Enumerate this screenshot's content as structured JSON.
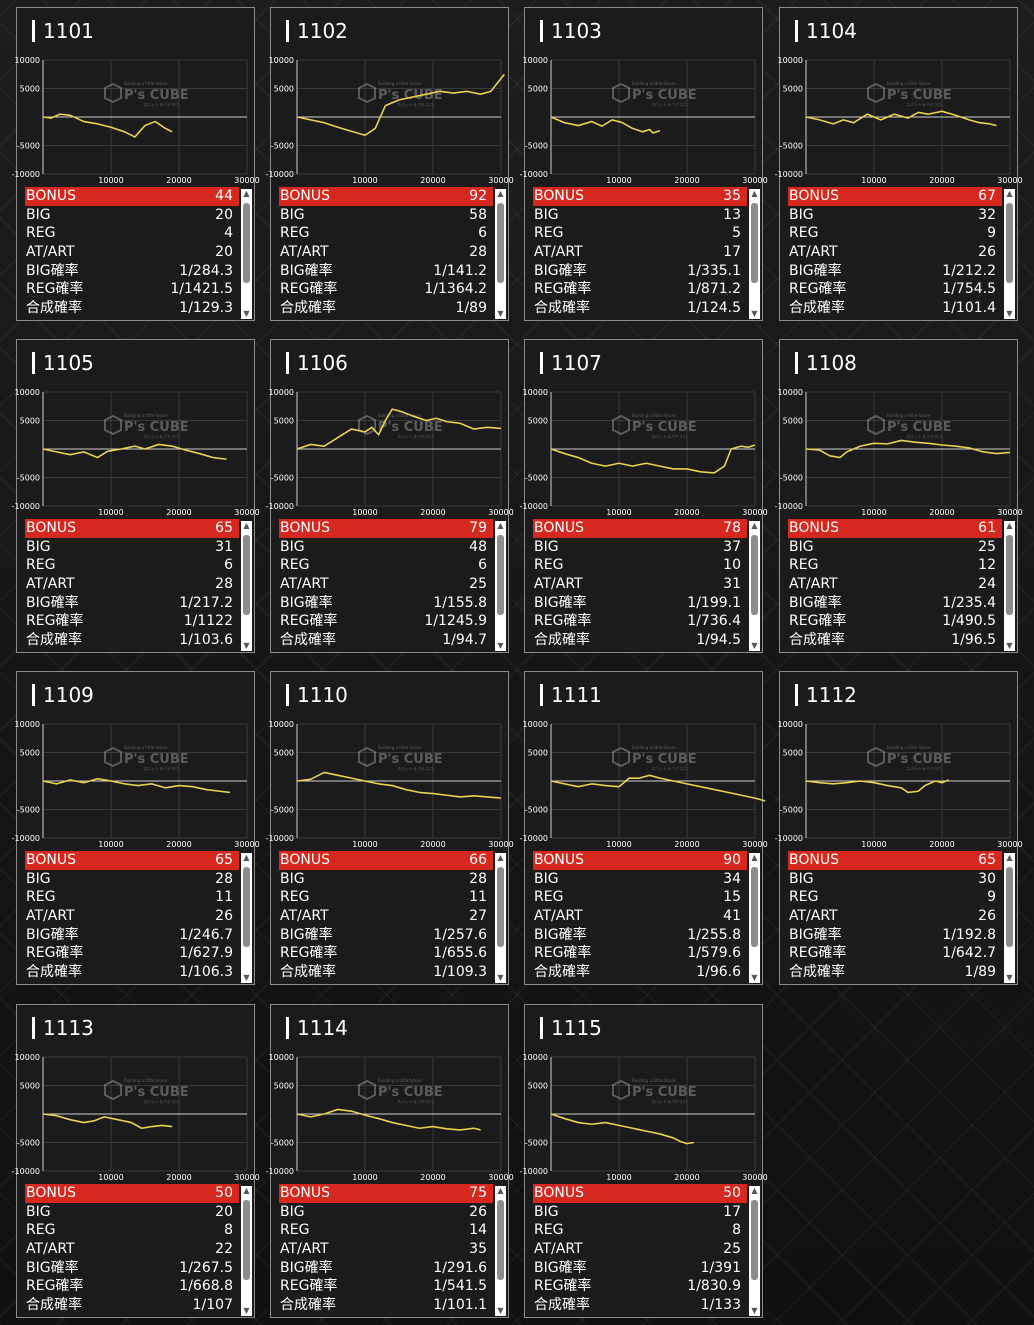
{
  "labels": {
    "bonus": "BONUS",
    "big": "BIG",
    "reg": "REG",
    "atart": "AT/ART",
    "big_rate": "BIG確率",
    "reg_rate": "REG確率",
    "total_rate": "合成確率"
  },
  "chart_axes": {
    "y_ticks": [
      "10000",
      "5000",
      "-5000",
      "-10000"
    ],
    "x_ticks": [
      "10000",
      "20000",
      "30000"
    ],
    "ylim": [
      -10000,
      10000
    ],
    "xlim": [
      0,
      30000
    ]
  },
  "watermark": {
    "text": "P's CUBE",
    "sub": "Building a little future",
    "sub2": "スロット＆パチスロ"
  },
  "colors": {
    "line": "#e8d24b",
    "bonus_bg": "#d6281f"
  },
  "machines": [
    {
      "id": "1101",
      "bonus": "44",
      "big": "20",
      "reg": "4",
      "atart": "20",
      "big_rate": "1/284.3",
      "reg_rate": "1/1421.5",
      "total_rate": "1/129.3",
      "series": [
        [
          0,
          0
        ],
        [
          1200,
          -200
        ],
        [
          2500,
          500
        ],
        [
          4000,
          300
        ],
        [
          6000,
          -800
        ],
        [
          8000,
          -1200
        ],
        [
          10000,
          -1800
        ],
        [
          12000,
          -2600
        ],
        [
          13500,
          -3500
        ],
        [
          15000,
          -1500
        ],
        [
          16500,
          -800
        ],
        [
          18000,
          -2000
        ],
        [
          19000,
          -2600
        ]
      ]
    },
    {
      "id": "1102",
      "bonus": "92",
      "big": "58",
      "reg": "6",
      "atart": "28",
      "big_rate": "1/141.2",
      "reg_rate": "1/1364.2",
      "total_rate": "1/89",
      "series": [
        [
          0,
          0
        ],
        [
          2000,
          -500
        ],
        [
          4000,
          -1000
        ],
        [
          6000,
          -1800
        ],
        [
          8000,
          -2500
        ],
        [
          10000,
          -3200
        ],
        [
          11500,
          -2000
        ],
        [
          13000,
          2000
        ],
        [
          15000,
          3000
        ],
        [
          17000,
          3500
        ],
        [
          19000,
          4000
        ],
        [
          21000,
          4500
        ],
        [
          23000,
          4200
        ],
        [
          25000,
          4500
        ],
        [
          27000,
          4000
        ],
        [
          28500,
          4500
        ],
        [
          29500,
          6000
        ],
        [
          30500,
          7500
        ]
      ]
    },
    {
      "id": "1103",
      "bonus": "35",
      "big": "13",
      "reg": "5",
      "atart": "17",
      "big_rate": "1/335.1",
      "reg_rate": "1/871.2",
      "total_rate": "1/124.5",
      "series": [
        [
          0,
          0
        ],
        [
          2000,
          -1000
        ],
        [
          4000,
          -1500
        ],
        [
          6000,
          -800
        ],
        [
          7500,
          -1600
        ],
        [
          9000,
          -500
        ],
        [
          10500,
          -1000
        ],
        [
          12000,
          -2000
        ],
        [
          13500,
          -2600
        ],
        [
          14500,
          -2200
        ],
        [
          15000,
          -2800
        ],
        [
          16000,
          -2400
        ]
      ]
    },
    {
      "id": "1104",
      "bonus": "67",
      "big": "32",
      "reg": "9",
      "atart": "26",
      "big_rate": "1/212.2",
      "reg_rate": "1/754.5",
      "total_rate": "1/101.4",
      "series": [
        [
          0,
          0
        ],
        [
          2000,
          -500
        ],
        [
          4000,
          -1200
        ],
        [
          5500,
          -500
        ],
        [
          7000,
          -1000
        ],
        [
          9000,
          500
        ],
        [
          11000,
          -500
        ],
        [
          13000,
          500
        ],
        [
          15000,
          -200
        ],
        [
          16500,
          800
        ],
        [
          18000,
          500
        ],
        [
          20000,
          1000
        ],
        [
          22000,
          300
        ],
        [
          24000,
          -500
        ],
        [
          25500,
          -1000
        ],
        [
          27000,
          -1200
        ],
        [
          28000,
          -1500
        ]
      ]
    },
    {
      "id": "1105",
      "bonus": "65",
      "big": "31",
      "reg": "6",
      "atart": "28",
      "big_rate": "1/217.2",
      "reg_rate": "1/1122",
      "total_rate": "1/103.6",
      "series": [
        [
          0,
          0
        ],
        [
          2000,
          -500
        ],
        [
          4000,
          -1000
        ],
        [
          6000,
          -500
        ],
        [
          8000,
          -1500
        ],
        [
          9500,
          -400
        ],
        [
          11500,
          0
        ],
        [
          13500,
          500
        ],
        [
          15000,
          0
        ],
        [
          17000,
          800
        ],
        [
          19000,
          500
        ],
        [
          21000,
          -200
        ],
        [
          23000,
          -800
        ],
        [
          25000,
          -1500
        ],
        [
          27000,
          -1800
        ]
      ]
    },
    {
      "id": "1106",
      "bonus": "79",
      "big": "48",
      "reg": "6",
      "atart": "25",
      "big_rate": "1/155.8",
      "reg_rate": "1/1245.9",
      "total_rate": "1/94.7",
      "series": [
        [
          0,
          0
        ],
        [
          2000,
          800
        ],
        [
          4000,
          500
        ],
        [
          6000,
          2000
        ],
        [
          8000,
          3500
        ],
        [
          10000,
          3000
        ],
        [
          11000,
          3800
        ],
        [
          12000,
          2500
        ],
        [
          13000,
          5000
        ],
        [
          14000,
          7000
        ],
        [
          15500,
          6500
        ],
        [
          17000,
          5800
        ],
        [
          19000,
          5000
        ],
        [
          20500,
          5400
        ],
        [
          22000,
          4800
        ],
        [
          24000,
          4500
        ],
        [
          26000,
          3500
        ],
        [
          28000,
          3800
        ],
        [
          30000,
          3600
        ]
      ]
    },
    {
      "id": "1107",
      "bonus": "78",
      "big": "37",
      "reg": "10",
      "atart": "31",
      "big_rate": "1/199.1",
      "reg_rate": "1/736.4",
      "total_rate": "1/94.5",
      "series": [
        [
          0,
          0
        ],
        [
          2000,
          -800
        ],
        [
          4000,
          -1500
        ],
        [
          6000,
          -2500
        ],
        [
          8000,
          -3000
        ],
        [
          10000,
          -2500
        ],
        [
          12000,
          -3000
        ],
        [
          14000,
          -2500
        ],
        [
          16000,
          -3000
        ],
        [
          18000,
          -3500
        ],
        [
          20000,
          -3500
        ],
        [
          22000,
          -4000
        ],
        [
          24000,
          -4200
        ],
        [
          25500,
          -3000
        ],
        [
          26500,
          0
        ],
        [
          28000,
          500
        ],
        [
          29000,
          300
        ],
        [
          30000,
          700
        ]
      ]
    },
    {
      "id": "1108",
      "bonus": "61",
      "big": "25",
      "reg": "12",
      "atart": "24",
      "big_rate": "1/235.4",
      "reg_rate": "1/490.5",
      "total_rate": "1/96.5",
      "series": [
        [
          0,
          0
        ],
        [
          2000,
          -200
        ],
        [
          3500,
          -1200
        ],
        [
          5000,
          -1500
        ],
        [
          6000,
          -500
        ],
        [
          8000,
          500
        ],
        [
          10000,
          1000
        ],
        [
          12000,
          900
        ],
        [
          14000,
          1500
        ],
        [
          16000,
          1200
        ],
        [
          18000,
          1000
        ],
        [
          20000,
          700
        ],
        [
          22000,
          500
        ],
        [
          24000,
          200
        ],
        [
          26000,
          -500
        ],
        [
          28000,
          -800
        ],
        [
          30000,
          -600
        ]
      ]
    },
    {
      "id": "1109",
      "bonus": "65",
      "big": "28",
      "reg": "11",
      "atart": "26",
      "big_rate": "1/246.7",
      "reg_rate": "1/627.9",
      "total_rate": "1/106.3",
      "series": [
        [
          0,
          0
        ],
        [
          2000,
          -500
        ],
        [
          4000,
          200
        ],
        [
          6000,
          -300
        ],
        [
          8000,
          400
        ],
        [
          10000,
          0
        ],
        [
          12000,
          -500
        ],
        [
          14000,
          -800
        ],
        [
          16000,
          -500
        ],
        [
          18000,
          -1200
        ],
        [
          20000,
          -800
        ],
        [
          22000,
          -1000
        ],
        [
          24000,
          -1500
        ],
        [
          26000,
          -1800
        ],
        [
          27500,
          -2000
        ]
      ]
    },
    {
      "id": "1110",
      "bonus": "66",
      "big": "28",
      "reg": "11",
      "atart": "27",
      "big_rate": "1/257.6",
      "reg_rate": "1/655.6",
      "total_rate": "1/109.3",
      "series": [
        [
          0,
          0
        ],
        [
          2000,
          300
        ],
        [
          4000,
          1500
        ],
        [
          6000,
          1000
        ],
        [
          8000,
          500
        ],
        [
          10000,
          0
        ],
        [
          12000,
          -500
        ],
        [
          14000,
          -800
        ],
        [
          16000,
          -1500
        ],
        [
          18000,
          -2000
        ],
        [
          20000,
          -2200
        ],
        [
          22000,
          -2500
        ],
        [
          24000,
          -2800
        ],
        [
          26000,
          -2600
        ],
        [
          28000,
          -2800
        ],
        [
          30000,
          -3000
        ]
      ]
    },
    {
      "id": "1111",
      "bonus": "90",
      "big": "34",
      "reg": "15",
      "atart": "41",
      "big_rate": "1/255.8",
      "reg_rate": "1/579.6",
      "total_rate": "1/96.6",
      "series": [
        [
          0,
          0
        ],
        [
          2000,
          -500
        ],
        [
          4000,
          -1000
        ],
        [
          6000,
          -500
        ],
        [
          8000,
          -800
        ],
        [
          10000,
          -1000
        ],
        [
          11500,
          500
        ],
        [
          13000,
          500
        ],
        [
          14500,
          1000
        ],
        [
          16000,
          500
        ],
        [
          18000,
          0
        ],
        [
          20000,
          -500
        ],
        [
          22000,
          -1000
        ],
        [
          24000,
          -1500
        ],
        [
          26000,
          -2000
        ],
        [
          28000,
          -2500
        ],
        [
          30000,
          -3000
        ],
        [
          32000,
          -3500
        ]
      ]
    },
    {
      "id": "1112",
      "bonus": "65",
      "big": "30",
      "reg": "9",
      "atart": "26",
      "big_rate": "1/192.8",
      "reg_rate": "1/642.7",
      "total_rate": "1/89",
      "series": [
        [
          0,
          0
        ],
        [
          2000,
          -300
        ],
        [
          4000,
          -500
        ],
        [
          6000,
          -300
        ],
        [
          8000,
          0
        ],
        [
          10000,
          -300
        ],
        [
          12000,
          -800
        ],
        [
          14000,
          -1200
        ],
        [
          15000,
          -2000
        ],
        [
          16500,
          -1800
        ],
        [
          17500,
          -800
        ],
        [
          19000,
          0
        ],
        [
          20000,
          -300
        ],
        [
          21000,
          200
        ]
      ]
    },
    {
      "id": "1113",
      "bonus": "50",
      "big": "20",
      "reg": "8",
      "atart": "22",
      "big_rate": "1/267.5",
      "reg_rate": "1/668.8",
      "total_rate": "1/107",
      "series": [
        [
          0,
          0
        ],
        [
          2000,
          -300
        ],
        [
          4000,
          -1000
        ],
        [
          6000,
          -1500
        ],
        [
          7500,
          -1200
        ],
        [
          9000,
          -500
        ],
        [
          11000,
          -1000
        ],
        [
          13000,
          -1500
        ],
        [
          14500,
          -2500
        ],
        [
          16000,
          -2200
        ],
        [
          17500,
          -2000
        ],
        [
          19000,
          -2200
        ]
      ]
    },
    {
      "id": "1114",
      "bonus": "75",
      "big": "26",
      "reg": "14",
      "atart": "35",
      "big_rate": "1/291.6",
      "reg_rate": "1/541.5",
      "total_rate": "1/101.1",
      "series": [
        [
          0,
          0
        ],
        [
          2000,
          -500
        ],
        [
          4000,
          0
        ],
        [
          6000,
          800
        ],
        [
          8000,
          500
        ],
        [
          10000,
          -200
        ],
        [
          12000,
          -800
        ],
        [
          14000,
          -1500
        ],
        [
          16000,
          -2000
        ],
        [
          18000,
          -2500
        ],
        [
          20000,
          -2200
        ],
        [
          22000,
          -2600
        ],
        [
          24000,
          -2800
        ],
        [
          26000,
          -2500
        ],
        [
          27000,
          -2800
        ]
      ]
    },
    {
      "id": "1115",
      "bonus": "50",
      "big": "17",
      "reg": "8",
      "atart": "25",
      "big_rate": "1/391",
      "reg_rate": "1/830.9",
      "total_rate": "1/133",
      "series": [
        [
          0,
          0
        ],
        [
          2000,
          -800
        ],
        [
          4000,
          -1500
        ],
        [
          6000,
          -1800
        ],
        [
          8000,
          -1500
        ],
        [
          10000,
          -2000
        ],
        [
          12000,
          -2500
        ],
        [
          14000,
          -3000
        ],
        [
          16000,
          -3500
        ],
        [
          18000,
          -4200
        ],
        [
          19000,
          -4800
        ],
        [
          20000,
          -5200
        ],
        [
          21000,
          -5000
        ]
      ]
    }
  ]
}
